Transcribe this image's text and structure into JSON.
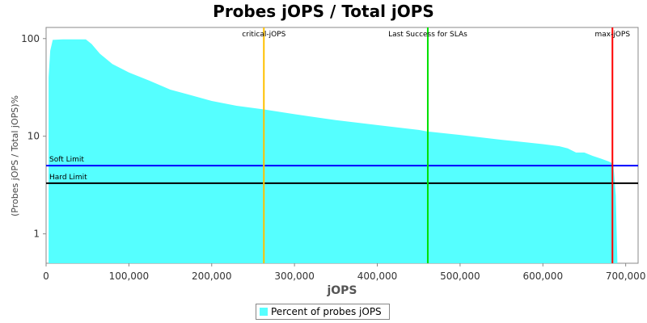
{
  "chart_data": {
    "type": "area",
    "title": "Probes jOPS / Total jOPS",
    "xlabel": "jOPS",
    "ylabel": "(Probes jOPS / Total jOPS)%",
    "xlim": [
      0,
      715000
    ],
    "ylim": [
      0.5,
      130
    ],
    "yscale": "log",
    "grid": false,
    "legend_position": "bottom",
    "x_ticks": [
      0,
      100000,
      200000,
      300000,
      400000,
      500000,
      600000,
      700000
    ],
    "x_tick_labels": [
      "0",
      "100,000",
      "200,000",
      "300,000",
      "400,000",
      "500,000",
      "600,000",
      "700,000"
    ],
    "y_ticks": [
      1,
      10,
      100
    ],
    "y_tick_labels": [
      "1",
      "10",
      "100"
    ],
    "series": [
      {
        "name": "Percent of probes jOPS",
        "color": "#55FFFF",
        "x": [
          3000,
          5000,
          8000,
          20000,
          35000,
          48000,
          55000,
          65000,
          80000,
          100000,
          125000,
          150000,
          170000,
          200000,
          230000,
          263000,
          300000,
          350000,
          400000,
          450000,
          460000,
          500000,
          550000,
          600000,
          620000,
          630000,
          640000,
          650000,
          660000,
          670000,
          680000,
          685000,
          688000,
          690000
        ],
        "values": [
          40,
          75,
          97,
          98,
          98,
          98,
          88,
          70,
          55,
          45,
          37,
          30,
          27,
          23,
          20.5,
          18.8,
          16.8,
          14.6,
          13,
          11.6,
          11.2,
          10.3,
          9.2,
          8.3,
          7.9,
          7.5,
          6.8,
          6.8,
          6.3,
          5.9,
          5.5,
          5.2,
          2.5,
          0.5
        ]
      }
    ],
    "reference_lines": {
      "vertical": [
        {
          "label": "critical-jOPS",
          "x": 263000,
          "color": "#FFC000"
        },
        {
          "label": "Last Success for SLAs",
          "x": 461000,
          "color": "#00E000"
        },
        {
          "label": "max-jOPS",
          "x": 684000,
          "color": "#FF0000"
        }
      ],
      "horizontal": [
        {
          "label": "Soft Limit",
          "y": 5,
          "color": "#0000FF"
        },
        {
          "label": "Hard Limit",
          "y": 3.3,
          "color": "#000000"
        }
      ]
    }
  }
}
